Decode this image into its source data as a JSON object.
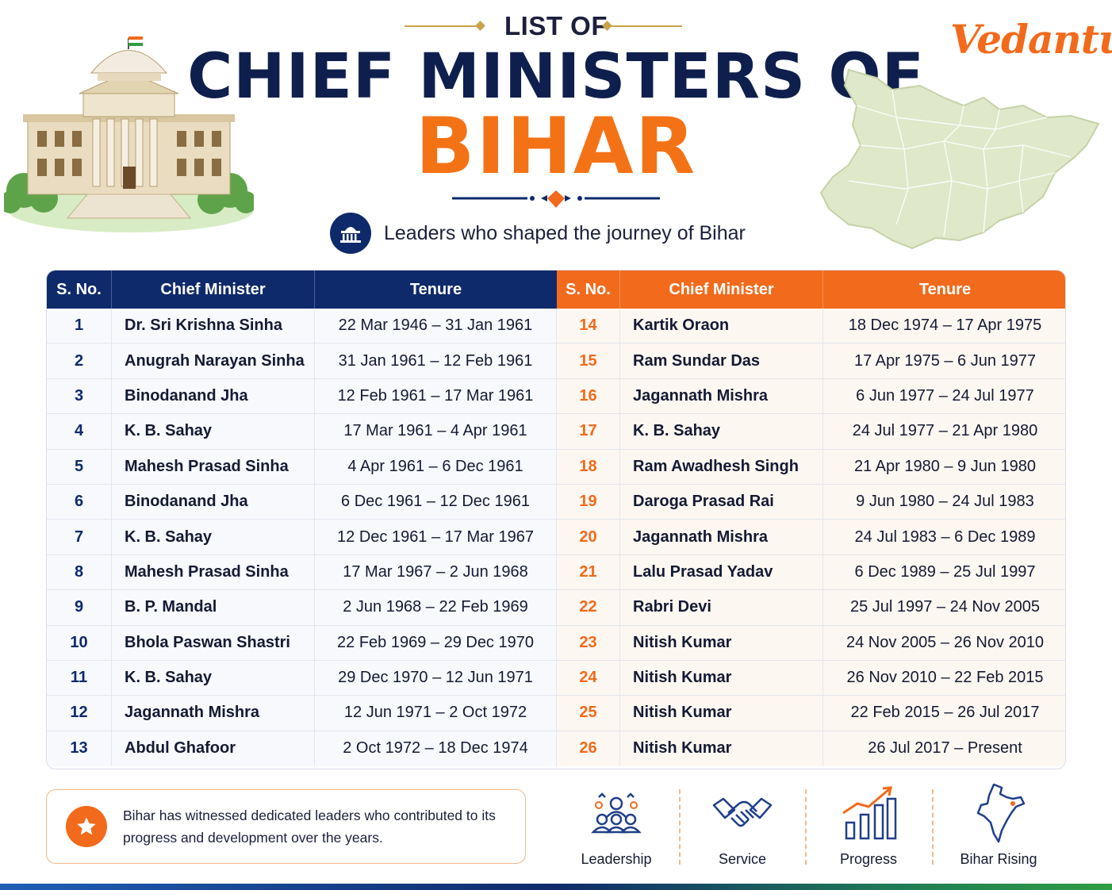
{
  "header": {
    "pre_title": "LIST OF",
    "title": "CHIEF MINISTERS OF",
    "title_highlight": "BIHAR",
    "subtitle": "Leaders who shaped the journey of Bihar",
    "brand": "Vedantu"
  },
  "colors": {
    "navy": "#0f2a6b",
    "orange": "#f26a1b",
    "gold": "#c9a24a",
    "map_green": "#dfe8c9"
  },
  "icons": {
    "subtitle_icon": "assembly-building-icon",
    "note_icon": "star-icon"
  },
  "table": {
    "headers": {
      "sno": "S. No.",
      "minister": "Chief Minister",
      "tenure": "Tenure"
    },
    "left": [
      {
        "sno": "1",
        "name": "Dr. Sri Krishna Sinha",
        "tenure": "22 Mar 1946 – 31 Jan 1961"
      },
      {
        "sno": "2",
        "name": "Anugrah Narayan Sinha",
        "tenure": "31 Jan 1961 – 12 Feb 1961"
      },
      {
        "sno": "3",
        "name": "Binodanand Jha",
        "tenure": "12 Feb 1961 – 17 Mar 1961"
      },
      {
        "sno": "4",
        "name": "K. B. Sahay",
        "tenure": "17 Mar 1961 – 4 Apr 1961"
      },
      {
        "sno": "5",
        "name": "Mahesh Prasad Sinha",
        "tenure": "4 Apr 1961 – 6 Dec 1961"
      },
      {
        "sno": "6",
        "name": "Binodanand Jha",
        "tenure": "6 Dec 1961 – 12 Dec 1961"
      },
      {
        "sno": "7",
        "name": "K. B. Sahay",
        "tenure": "12 Dec 1961 – 17 Mar 1967"
      },
      {
        "sno": "8",
        "name": "Mahesh Prasad Sinha",
        "tenure": "17 Mar 1967 – 2 Jun 1968"
      },
      {
        "sno": "9",
        "name": "B. P. Mandal",
        "tenure": "2 Jun 1968 – 22 Feb 1969"
      },
      {
        "sno": "10",
        "name": "Bhola Paswan Shastri",
        "tenure": "22 Feb 1969 – 29 Dec 1970"
      },
      {
        "sno": "11",
        "name": "K. B. Sahay",
        "tenure": "29 Dec 1970 – 12 Jun 1971"
      },
      {
        "sno": "12",
        "name": "Jagannath Mishra",
        "tenure": "12 Jun 1971 – 2 Oct 1972"
      },
      {
        "sno": "13",
        "name": "Abdul Ghafoor",
        "tenure": "2 Oct 1972 – 18 Dec 1974"
      }
    ],
    "right": [
      {
        "sno": "14",
        "name": "Kartik Oraon",
        "tenure": "18 Dec 1974 – 17 Apr 1975"
      },
      {
        "sno": "15",
        "name": "Ram Sundar Das",
        "tenure": "17 Apr 1975 – 6 Jun 1977"
      },
      {
        "sno": "16",
        "name": "Jagannath Mishra",
        "tenure": "6 Jun 1977 – 24 Jul 1977"
      },
      {
        "sno": "17",
        "name": "K. B. Sahay",
        "tenure": "24 Jul 1977 – 21 Apr 1980"
      },
      {
        "sno": "18",
        "name": "Ram Awadhesh Singh",
        "tenure": "21 Apr 1980 – 9 Jun 1980"
      },
      {
        "sno": "19",
        "name": "Daroga Prasad Rai",
        "tenure": "9 Jun 1980 – 24 Jul 1983"
      },
      {
        "sno": "20",
        "name": "Jagannath Mishra",
        "tenure": "24 Jul 1983 – 6 Dec 1989"
      },
      {
        "sno": "21",
        "name": "Lalu Prasad Yadav",
        "tenure": "6 Dec 1989 – 25 Jul 1997"
      },
      {
        "sno": "22",
        "name": "Rabri Devi",
        "tenure": "25 Jul 1997 – 24 Nov 2005"
      },
      {
        "sno": "23",
        "name": "Nitish Kumar",
        "tenure": "24 Nov 2005 – 26 Nov 2010"
      },
      {
        "sno": "24",
        "name": "Nitish Kumar",
        "tenure": "26 Nov 2010 – 22 Feb 2015"
      },
      {
        "sno": "25",
        "name": "Nitish Kumar",
        "tenure": "22 Feb 2015 – 26 Jul 2017"
      },
      {
        "sno": "26",
        "name": "Nitish Kumar",
        "tenure": "26 Jul 2017 – Present"
      }
    ]
  },
  "footer": {
    "note": "Bihar has witnessed dedicated leaders who contributed to its progress and development over the years.",
    "features": [
      {
        "label": "Leadership",
        "icon": "leadership-icon"
      },
      {
        "label": "Service",
        "icon": "handshake-icon"
      },
      {
        "label": "Progress",
        "icon": "growth-chart-icon"
      },
      {
        "label": "Bihar Rising",
        "icon": "india-map-icon"
      }
    ]
  }
}
